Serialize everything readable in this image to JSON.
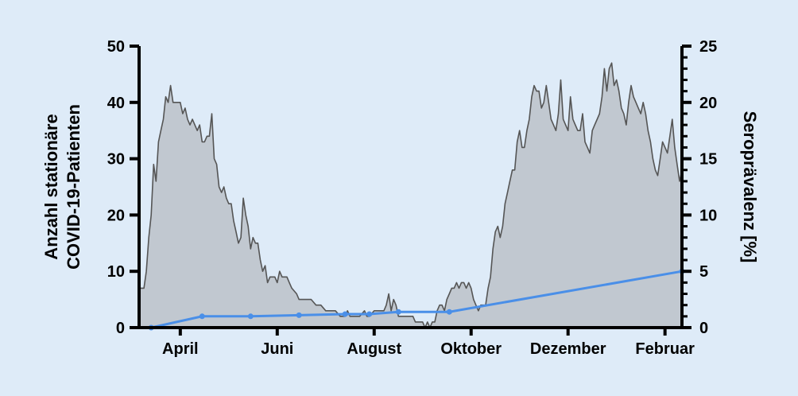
{
  "colors": {
    "background": "#deebf8",
    "area_fill": "#c1c8d0",
    "area_stroke": "#555555",
    "seroprevalence_line": "#4a8fe8"
  },
  "chart_data": {
    "type": "area",
    "x_axis": {
      "tick_labels": [
        "April",
        "Juni",
        "August",
        "Oktober",
        "Dezember",
        "Februar"
      ],
      "tick_months": [
        1,
        3,
        5,
        7,
        9,
        11
      ],
      "range_months": [
        0.15,
        11.35
      ],
      "note": "months since March 1"
    },
    "y_left": {
      "label_lines": [
        "Anzahl stationäre",
        "COVID-19-Patienten"
      ],
      "range": [
        0,
        50
      ],
      "ticks": [
        0,
        10,
        20,
        30,
        40,
        50
      ]
    },
    "y_right": {
      "label": "Seroprävalenz [%]",
      "range": [
        0,
        25
      ],
      "ticks": [
        0,
        5,
        10,
        15,
        20,
        25
      ],
      "minor_step": 1
    },
    "series": [
      {
        "axis": "left",
        "kind": "area",
        "points": [
          [
            0.15,
            7
          ],
          [
            0.25,
            7
          ],
          [
            0.3,
            10
          ],
          [
            0.35,
            16
          ],
          [
            0.4,
            20
          ],
          [
            0.45,
            29
          ],
          [
            0.5,
            26
          ],
          [
            0.55,
            33
          ],
          [
            0.6,
            35
          ],
          [
            0.65,
            37
          ],
          [
            0.7,
            41
          ],
          [
            0.75,
            40
          ],
          [
            0.8,
            43
          ],
          [
            0.85,
            40
          ],
          [
            0.9,
            40
          ],
          [
            1.0,
            40
          ],
          [
            1.05,
            38
          ],
          [
            1.1,
            39
          ],
          [
            1.15,
            37
          ],
          [
            1.2,
            36
          ],
          [
            1.25,
            37
          ],
          [
            1.3,
            36
          ],
          [
            1.35,
            35
          ],
          [
            1.4,
            36
          ],
          [
            1.45,
            33
          ],
          [
            1.5,
            33
          ],
          [
            1.55,
            34
          ],
          [
            1.6,
            34
          ],
          [
            1.65,
            38
          ],
          [
            1.7,
            30
          ],
          [
            1.75,
            29
          ],
          [
            1.8,
            25
          ],
          [
            1.85,
            24
          ],
          [
            1.9,
            25
          ],
          [
            1.95,
            23
          ],
          [
            2.0,
            22
          ],
          [
            2.05,
            22
          ],
          [
            2.1,
            19
          ],
          [
            2.15,
            17
          ],
          [
            2.2,
            15
          ],
          [
            2.25,
            16
          ],
          [
            2.3,
            23
          ],
          [
            2.35,
            20
          ],
          [
            2.4,
            18
          ],
          [
            2.45,
            14
          ],
          [
            2.5,
            16
          ],
          [
            2.55,
            15
          ],
          [
            2.6,
            15
          ],
          [
            2.65,
            12
          ],
          [
            2.7,
            10
          ],
          [
            2.75,
            11
          ],
          [
            2.8,
            8
          ],
          [
            2.85,
            9
          ],
          [
            2.9,
            9
          ],
          [
            2.95,
            9
          ],
          [
            3.0,
            8
          ],
          [
            3.05,
            10
          ],
          [
            3.1,
            9
          ],
          [
            3.2,
            9
          ],
          [
            3.25,
            8
          ],
          [
            3.3,
            7
          ],
          [
            3.4,
            6
          ],
          [
            3.45,
            5
          ],
          [
            3.5,
            5
          ],
          [
            3.6,
            5
          ],
          [
            3.7,
            5
          ],
          [
            3.8,
            4
          ],
          [
            3.9,
            4
          ],
          [
            4.0,
            3
          ],
          [
            4.1,
            3
          ],
          [
            4.2,
            3
          ],
          [
            4.3,
            2
          ],
          [
            4.4,
            2
          ],
          [
            4.45,
            3
          ],
          [
            4.5,
            2
          ],
          [
            4.6,
            2
          ],
          [
            4.7,
            2
          ],
          [
            4.8,
            3
          ],
          [
            4.85,
            2
          ],
          [
            4.9,
            2
          ],
          [
            5.0,
            3
          ],
          [
            5.1,
            3
          ],
          [
            5.2,
            3
          ],
          [
            5.25,
            4
          ],
          [
            5.3,
            6
          ],
          [
            5.35,
            3
          ],
          [
            5.4,
            5
          ],
          [
            5.45,
            4
          ],
          [
            5.5,
            2
          ],
          [
            5.6,
            2
          ],
          [
            5.7,
            2
          ],
          [
            5.8,
            2
          ],
          [
            5.85,
            1
          ],
          [
            5.9,
            1
          ],
          [
            6.0,
            1
          ],
          [
            6.05,
            0
          ],
          [
            6.1,
            1
          ],
          [
            6.15,
            0
          ],
          [
            6.2,
            1
          ],
          [
            6.25,
            1
          ],
          [
            6.3,
            3
          ],
          [
            6.35,
            4
          ],
          [
            6.4,
            4
          ],
          [
            6.45,
            3
          ],
          [
            6.5,
            5
          ],
          [
            6.55,
            6
          ],
          [
            6.6,
            7
          ],
          [
            6.65,
            7
          ],
          [
            6.7,
            8
          ],
          [
            6.75,
            7
          ],
          [
            6.8,
            8
          ],
          [
            6.85,
            8
          ],
          [
            6.9,
            7
          ],
          [
            6.95,
            8
          ],
          [
            7.0,
            7
          ],
          [
            7.05,
            5
          ],
          [
            7.1,
            4
          ],
          [
            7.15,
            3
          ],
          [
            7.2,
            4
          ],
          [
            7.25,
            4
          ],
          [
            7.3,
            4
          ],
          [
            7.35,
            7
          ],
          [
            7.4,
            9
          ],
          [
            7.45,
            14
          ],
          [
            7.5,
            17
          ],
          [
            7.55,
            18
          ],
          [
            7.6,
            16
          ],
          [
            7.65,
            18
          ],
          [
            7.7,
            22
          ],
          [
            7.75,
            24
          ],
          [
            7.8,
            26
          ],
          [
            7.85,
            28
          ],
          [
            7.9,
            28
          ],
          [
            7.95,
            33
          ],
          [
            8.0,
            35
          ],
          [
            8.05,
            32
          ],
          [
            8.1,
            32
          ],
          [
            8.15,
            35
          ],
          [
            8.2,
            37
          ],
          [
            8.25,
            41
          ],
          [
            8.3,
            43
          ],
          [
            8.35,
            42
          ],
          [
            8.4,
            42
          ],
          [
            8.45,
            39
          ],
          [
            8.5,
            40
          ],
          [
            8.55,
            43
          ],
          [
            8.6,
            40
          ],
          [
            8.65,
            37
          ],
          [
            8.7,
            36
          ],
          [
            8.75,
            35
          ],
          [
            8.8,
            38
          ],
          [
            8.85,
            44
          ],
          [
            8.9,
            37
          ],
          [
            8.95,
            36
          ],
          [
            9.0,
            35
          ],
          [
            9.05,
            41
          ],
          [
            9.1,
            37
          ],
          [
            9.15,
            36
          ],
          [
            9.2,
            35
          ],
          [
            9.25,
            35
          ],
          [
            9.3,
            38
          ],
          [
            9.35,
            33
          ],
          [
            9.4,
            32
          ],
          [
            9.45,
            31
          ],
          [
            9.5,
            35
          ],
          [
            9.55,
            36
          ],
          [
            9.6,
            37
          ],
          [
            9.65,
            38
          ],
          [
            9.7,
            41
          ],
          [
            9.75,
            46
          ],
          [
            9.8,
            42
          ],
          [
            9.85,
            46
          ],
          [
            9.9,
            47
          ],
          [
            9.95,
            43
          ],
          [
            10.0,
            44
          ],
          [
            10.05,
            42
          ],
          [
            10.1,
            39
          ],
          [
            10.15,
            38
          ],
          [
            10.2,
            36
          ],
          [
            10.25,
            40
          ],
          [
            10.3,
            43
          ],
          [
            10.35,
            41
          ],
          [
            10.4,
            40
          ],
          [
            10.45,
            39
          ],
          [
            10.5,
            38
          ],
          [
            10.55,
            40
          ],
          [
            10.6,
            38
          ],
          [
            10.65,
            35
          ],
          [
            10.7,
            33
          ],
          [
            10.75,
            30
          ],
          [
            10.8,
            28
          ],
          [
            10.85,
            27
          ],
          [
            10.9,
            30
          ],
          [
            10.95,
            33
          ],
          [
            11.0,
            32
          ],
          [
            11.05,
            31
          ],
          [
            11.1,
            34
          ],
          [
            11.15,
            37
          ],
          [
            11.2,
            32
          ],
          [
            11.25,
            29
          ],
          [
            11.3,
            26
          ],
          [
            11.35,
            28
          ]
        ]
      },
      {
        "axis": "right",
        "kind": "line",
        "points": [
          [
            0.4,
            0
          ],
          [
            1.45,
            1
          ],
          [
            2.45,
            1
          ],
          [
            3.45,
            1.1
          ],
          [
            4.4,
            1.2
          ],
          [
            4.9,
            1.2
          ],
          [
            5.5,
            1.4
          ],
          [
            6.55,
            1.4
          ],
          [
            11.35,
            5
          ]
        ]
      }
    ]
  }
}
